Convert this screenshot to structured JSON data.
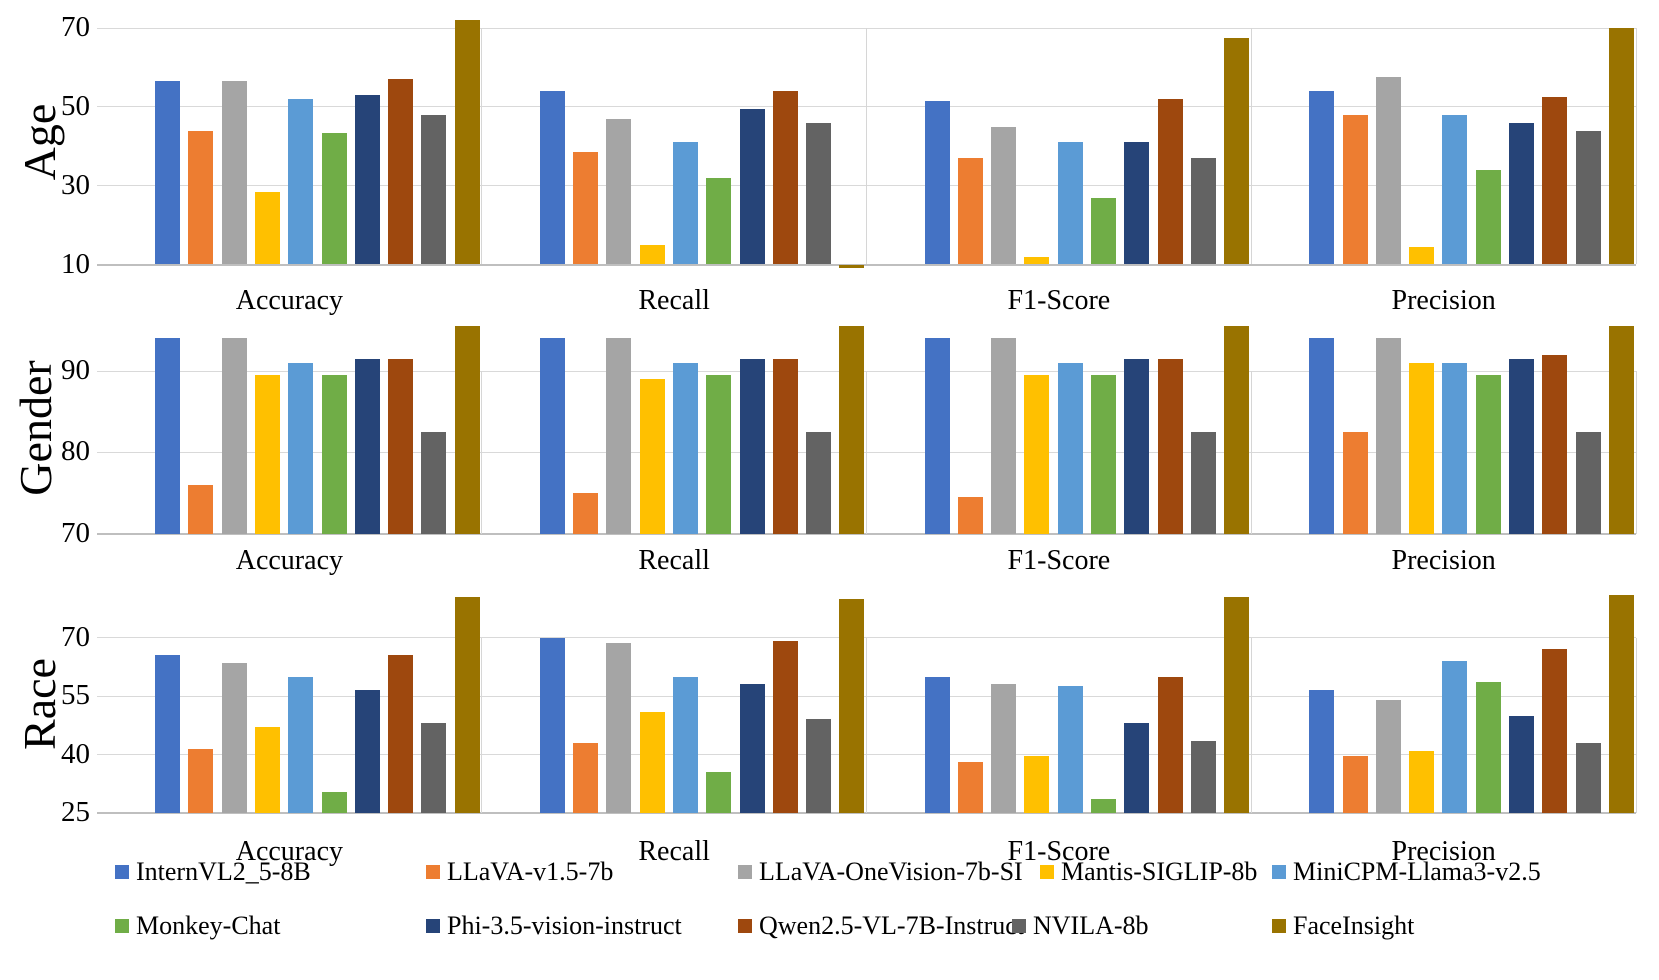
{
  "chart_data": {
    "type": "bar",
    "orientation": "vertical",
    "grid": true,
    "legend_position": "bottom",
    "categories": [
      "Accuracy",
      "Recall",
      "F1-Score",
      "Precision"
    ],
    "series": [
      {
        "name": "InternVL2_5-8B",
        "color": "#4472C4"
      },
      {
        "name": "LLaVA-v1.5-7b",
        "color": "#ED7D31"
      },
      {
        "name": "LLaVA-OneVision-7b-SI",
        "color": "#A5A5A5"
      },
      {
        "name": "Mantis-SIGLIP-8b",
        "color": "#FFC000"
      },
      {
        "name": "MiniCPM-Llama3-v2.5",
        "color": "#5B9BD5"
      },
      {
        "name": "Monkey-Chat",
        "color": "#70AD47"
      },
      {
        "name": "Phi-3.5-vision-instruct",
        "color": "#264478"
      },
      {
        "name": "Qwen2.5-VL-7B-Instruct",
        "color": "#9E480E"
      },
      {
        "name": "NVILA-8b",
        "color": "#636363"
      },
      {
        "name": "FaceInsight",
        "color": "#997300"
      }
    ],
    "rows": [
      {
        "label": "Age",
        "ymin": 10,
        "yticks": [
          10,
          30,
          50,
          70
        ],
        "ylim": [
          10,
          75
        ],
        "values": {
          "Accuracy": [
            56.5,
            44,
            56.5,
            28.5,
            52,
            43.5,
            53,
            57,
            48,
            72
          ],
          "Recall": [
            54,
            38.5,
            47,
            15,
            41,
            32,
            49.5,
            54,
            46,
            9
          ],
          "F1-Score": [
            51.5,
            37,
            45,
            12,
            41,
            27,
            41,
            52,
            37,
            67.5
          ],
          "Precision": [
            54,
            48,
            57.5,
            14.5,
            48,
            34,
            46,
            52.5,
            44,
            70
          ]
        }
      },
      {
        "label": "Gender",
        "ymin": 70,
        "yticks": [
          70,
          80,
          90
        ],
        "ylim": [
          70,
          96.5
        ],
        "values": {
          "Accuracy": [
            94,
            76,
            94,
            89.5,
            91,
            89.5,
            91.5,
            91.5,
            82.5,
            95.5
          ],
          "Recall": [
            94,
            75,
            94,
            89,
            91,
            89.5,
            91.5,
            91.5,
            82.5,
            95.5
          ],
          "F1-Score": [
            94,
            74.5,
            94,
            89.5,
            91,
            89.5,
            91.5,
            91.5,
            82.5,
            95.5
          ],
          "Precision": [
            94,
            82.5,
            94,
            91,
            91,
            89.5,
            91.5,
            92,
            82.5,
            95.5
          ]
        }
      },
      {
        "label": "Race",
        "ymin": 25,
        "yticks": [
          25,
          40,
          55,
          70
        ],
        "ylim": [
          25,
          82
        ],
        "values": {
          "Accuracy": [
            65.5,
            41.5,
            63.5,
            47,
            60,
            30.5,
            56.5,
            65.5,
            48,
            80.5
          ],
          "Recall": [
            70,
            43,
            68.5,
            51,
            60,
            35.5,
            58,
            69,
            49,
            80
          ],
          "F1-Score": [
            60,
            38,
            58,
            39.5,
            57.5,
            28.5,
            48,
            60,
            43.5,
            80.5
          ],
          "Precision": [
            56.5,
            39.5,
            54,
            41,
            64,
            58.5,
            50,
            67,
            43,
            81
          ]
        }
      }
    ]
  }
}
